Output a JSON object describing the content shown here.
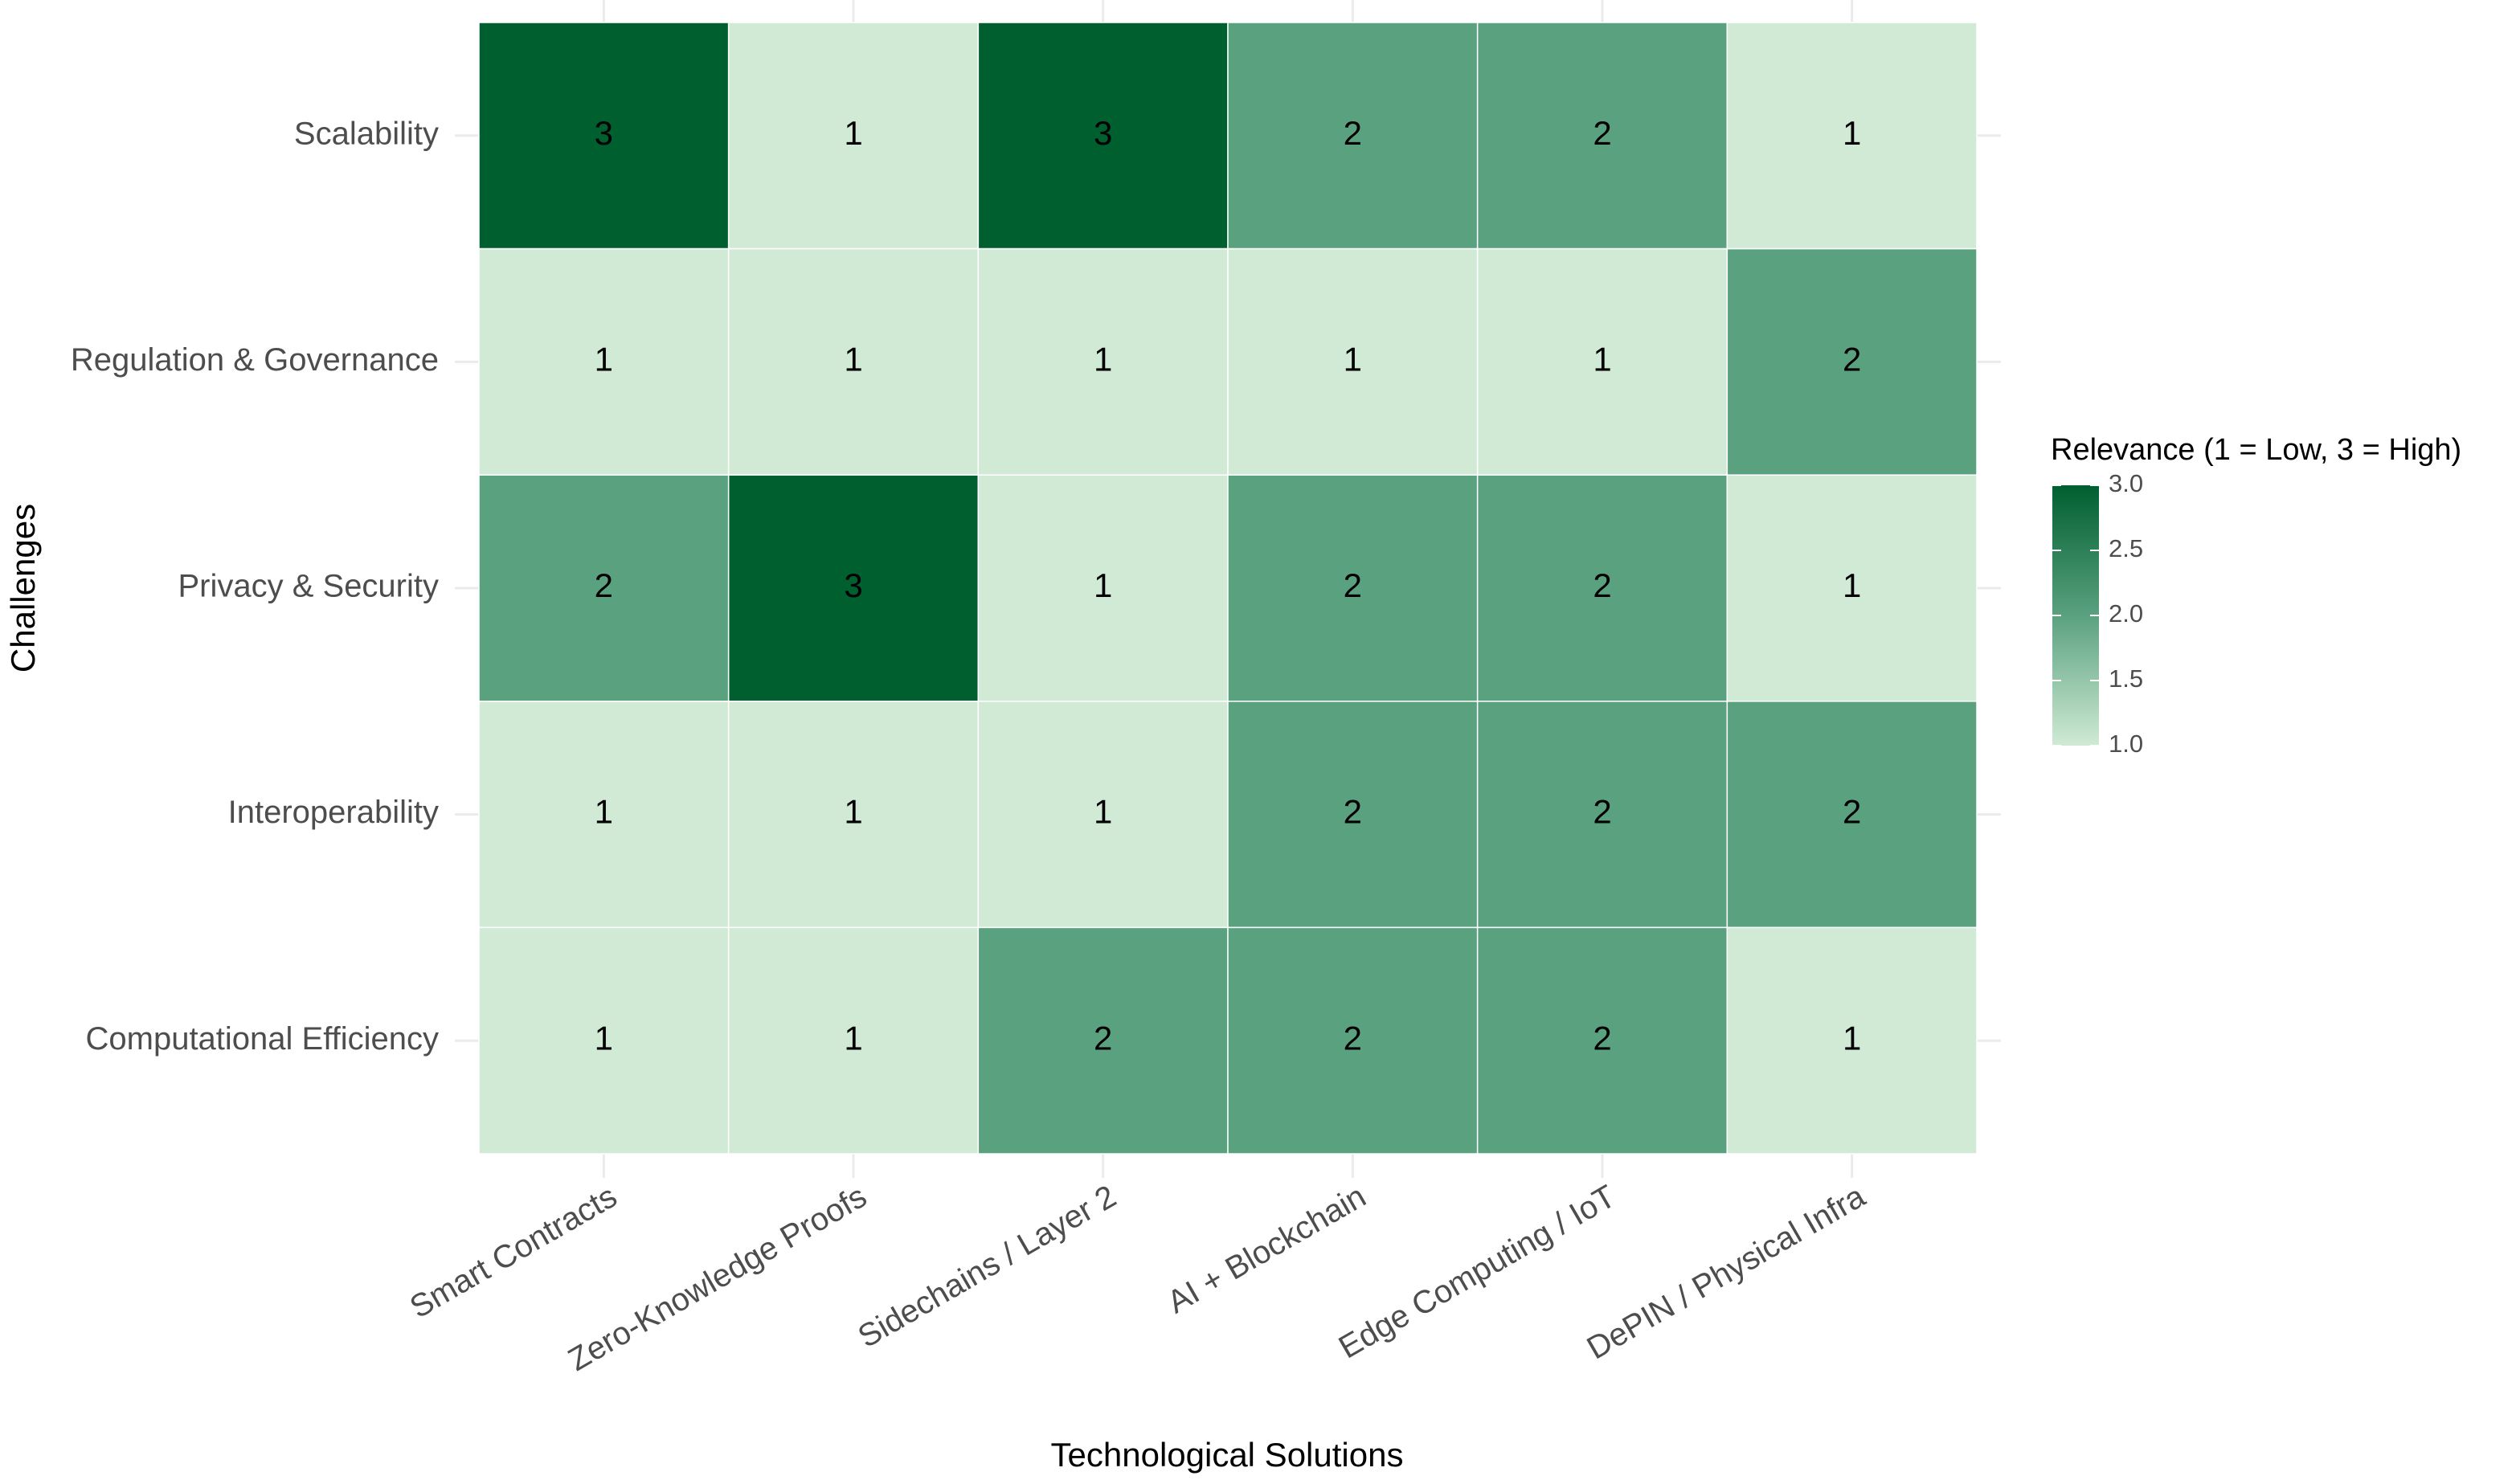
{
  "chart_data": {
    "type": "heatmap",
    "x_label": "Technological Solutions",
    "y_label": "Challenges",
    "x_categories": [
      "Smart Contracts",
      "Zero-Knowledge Proofs",
      "Sidechains / Layer 2",
      "AI + Blockchain",
      "Edge Computing / IoT",
      "DePIN / Physical Infra"
    ],
    "y_categories": [
      "Scalability",
      "Regulation & Governance",
      "Privacy & Security",
      "Interoperability",
      "Computational Efficiency"
    ],
    "values": [
      [
        3,
        1,
        3,
        2,
        2,
        1
      ],
      [
        1,
        1,
        1,
        1,
        1,
        2
      ],
      [
        2,
        3,
        1,
        2,
        2,
        1
      ],
      [
        1,
        1,
        1,
        2,
        2,
        2
      ],
      [
        1,
        1,
        2,
        2,
        2,
        1
      ]
    ],
    "colorbar": {
      "title": "Relevance (1 = Low, 3 = High)",
      "lim": [
        1,
        3
      ],
      "colors": [
        "#d0ead5",
        "#5aa17f",
        "#005f2f"
      ],
      "ticks": [
        {
          "value": 1,
          "label": "1.0"
        },
        {
          "value": 1.5,
          "label": "1.5"
        },
        {
          "value": 2,
          "label": "2.0"
        },
        {
          "value": 2.5,
          "label": "2.5"
        },
        {
          "value": 3,
          "label": "3.0"
        }
      ]
    },
    "grid": true
  }
}
